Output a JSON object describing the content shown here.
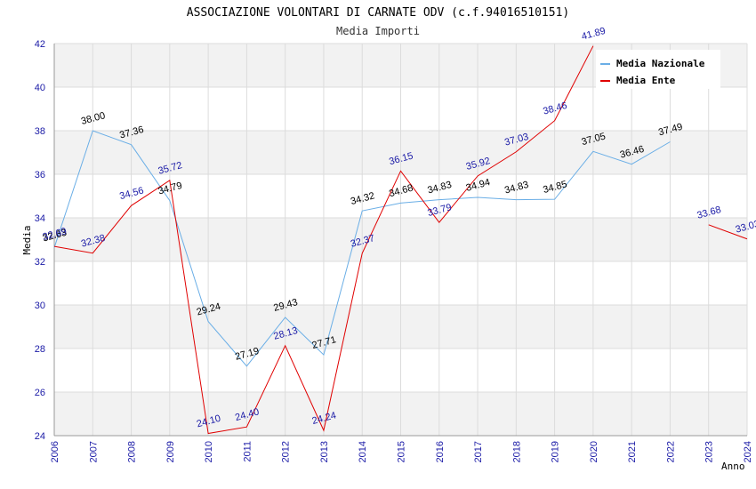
{
  "chart_data": {
    "type": "line",
    "title": "ASSOCIAZIONE VOLONTARI DI CARNATE ODV (c.f.94016510151)",
    "subtitle": "Media Importi",
    "xlabel": "Anno",
    "ylabel": "Media",
    "ylim": [
      24,
      42
    ],
    "yticks": [
      "24",
      "26",
      "28",
      "30",
      "32",
      "34",
      "36",
      "38",
      "40",
      "42"
    ],
    "categories": [
      "2006",
      "2007",
      "2008",
      "2009",
      "2010",
      "2011",
      "2012",
      "2013",
      "2014",
      "2015",
      "2016",
      "2017",
      "2018",
      "2019",
      "2020",
      "2021",
      "2022",
      "2023",
      "2024"
    ],
    "grid": true,
    "legend_position": "top-right",
    "series": [
      {
        "name": "Media Nazionale",
        "color": "#6aaee6",
        "values": [
          32.63,
          38.0,
          37.36,
          34.79,
          29.24,
          27.19,
          29.43,
          27.71,
          34.32,
          34.68,
          34.83,
          34.94,
          34.83,
          34.85,
          37.05,
          36.46,
          37.49,
          null,
          null
        ],
        "labels": [
          "32.63",
          "38.00",
          "37.36",
          "34.79",
          "29.24",
          "27.19",
          "29.43",
          "27.71",
          "34.32",
          "34.68",
          "34.83",
          "34.94",
          "34.83",
          "34.85",
          "37.05",
          "36.46",
          "37.49",
          null,
          null
        ]
      },
      {
        "name": "Media Ente",
        "color": "#e00000",
        "values": [
          32.69,
          32.38,
          34.56,
          35.72,
          24.1,
          24.4,
          28.13,
          24.24,
          32.37,
          36.15,
          33.79,
          35.92,
          37.03,
          38.46,
          41.89,
          null,
          null,
          33.68,
          33.03
        ],
        "labels": [
          "32.69",
          "32.38",
          "34.56",
          "35.72",
          "24.10",
          "24.40",
          "28.13",
          "24.24",
          "32.37",
          "36.15",
          "33.79",
          "35.92",
          "37.03",
          "38.46",
          "41.89",
          null,
          null,
          "33.68",
          "33.03"
        ]
      }
    ]
  }
}
